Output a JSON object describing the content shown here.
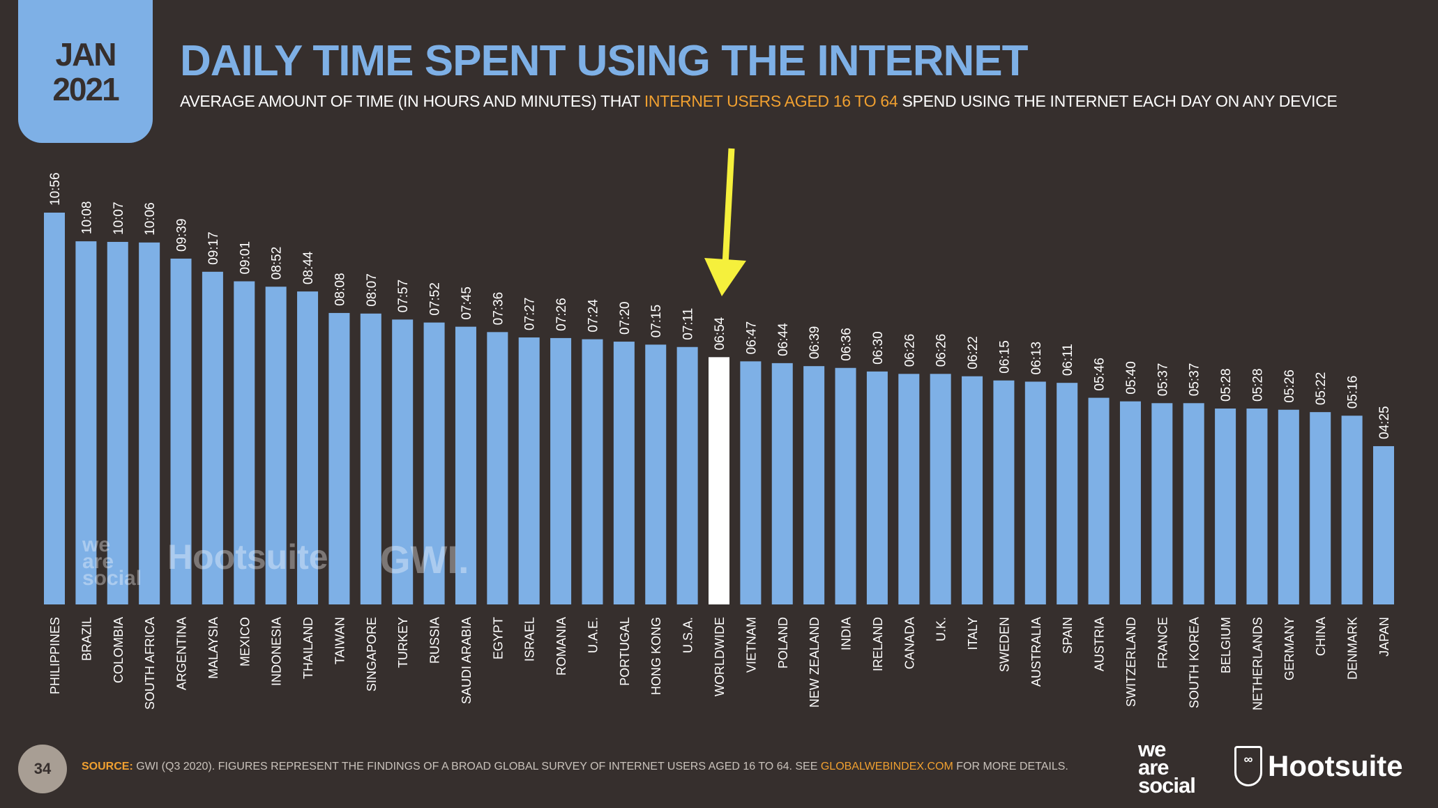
{
  "header": {
    "month": "JAN",
    "year": "2021",
    "title": "DAILY TIME SPENT USING THE INTERNET",
    "subtitle_pre": "AVERAGE AMOUNT OF TIME (IN HOURS AND MINUTES) THAT ",
    "subtitle_highlight": "INTERNET USERS AGED 16 TO 64",
    "subtitle_post": " SPEND USING THE INTERNET EACH DAY ON ANY DEVICE"
  },
  "footer": {
    "page": "34",
    "source_label": "SOURCE:",
    "source_text": " GWI (Q3 2020). FIGURES REPRESENT THE FINDINGS OF A BROAD GLOBAL SURVEY OF INTERNET USERS AGED 16 TO 64. SEE ",
    "source_link": "GLOBALWEBINDEX.COM",
    "source_end": " FOR MORE DETAILS.",
    "logo_was": "we are social",
    "logo_hootsuite": "Hootsuite",
    "watermark_gwi": "GWI."
  },
  "colors": {
    "bar": "#7eb0e6",
    "highlight_bar": "#ffffff",
    "arrow": "#f5f03c",
    "background": "#362f2d",
    "accent": "#f0a030"
  },
  "chart_data": {
    "type": "bar",
    "title": "DAILY TIME SPENT USING THE INTERNET",
    "unit": "hh:mm",
    "highlight": "WORLDWIDE",
    "annotation": "yellow arrow pointing to WORLDWIDE",
    "categories": [
      "PHILIPPINES",
      "BRAZIL",
      "COLOMBIA",
      "SOUTH AFRICA",
      "ARGENTINA",
      "MALAYSIA",
      "MEXICO",
      "INDONESIA",
      "THAILAND",
      "TAIWAN",
      "SINGAPORE",
      "TURKEY",
      "RUSSIA",
      "SAUDI ARABIA",
      "EGYPT",
      "ISRAEL",
      "ROMANIA",
      "U.A.E.",
      "PORTUGAL",
      "HONG KONG",
      "U.S.A.",
      "WORLDWIDE",
      "VIETNAM",
      "POLAND",
      "NEW ZEALAND",
      "INDIA",
      "IRELAND",
      "CANADA",
      "U.K.",
      "ITALY",
      "SWEDEN",
      "AUSTRALIA",
      "SPAIN",
      "AUSTRIA",
      "SWITZERLAND",
      "FRANCE",
      "SOUTH KOREA",
      "BELGIUM",
      "NETHERLANDS",
      "GERMANY",
      "CHINA",
      "DENMARK",
      "JAPAN"
    ],
    "values": [
      "10:56",
      "10:08",
      "10:07",
      "10:06",
      "09:39",
      "09:17",
      "09:01",
      "08:52",
      "08:44",
      "08:08",
      "08:07",
      "07:57",
      "07:52",
      "07:45",
      "07:36",
      "07:27",
      "07:26",
      "07:24",
      "07:20",
      "07:15",
      "07:11",
      "06:54",
      "06:47",
      "06:44",
      "06:39",
      "06:36",
      "06:30",
      "06:26",
      "06:26",
      "06:22",
      "06:15",
      "06:13",
      "06:11",
      "05:46",
      "05:40",
      "05:37",
      "05:37",
      "05:28",
      "05:28",
      "05:26",
      "05:22",
      "05:16",
      "04:25"
    ]
  }
}
